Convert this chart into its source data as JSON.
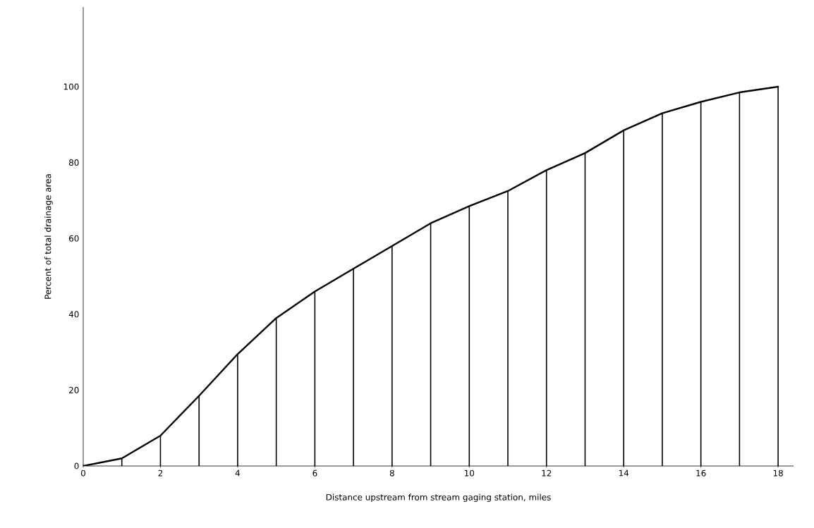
{
  "chart_data": {
    "type": "line",
    "x": [
      0,
      1,
      2,
      3,
      4,
      5,
      6,
      7,
      8,
      9,
      10,
      11,
      12,
      13,
      14,
      15,
      16,
      17,
      18
    ],
    "series": [
      {
        "color": "#000000",
        "values": [
          0,
          2,
          8,
          18.5,
          29.5,
          39,
          46,
          52,
          58,
          64,
          68.5,
          72.5,
          78,
          82.5,
          88.5,
          93,
          96,
          98.5,
          100
        ]
      },
      {
        "type": "bar",
        "color": "#000000",
        "values": [
          0,
          2,
          8,
          18.5,
          29.5,
          39,
          46,
          52,
          58,
          64,
          68.5,
          72.5,
          78,
          82.5,
          88.5,
          93,
          96,
          98.5,
          100
        ]
      }
    ],
    "xlabel": "Distance upstream from stream gaging station, miles",
    "ylabel": "Percent of total drainage area",
    "xlim": [
      0,
      18.4
    ],
    "ylim": [
      0,
      121
    ],
    "xticks": [
      0,
      2,
      4,
      6,
      8,
      10,
      12,
      14,
      16,
      18
    ],
    "yticks": [
      0,
      20,
      40,
      60,
      80,
      100
    ],
    "grid": false
  }
}
